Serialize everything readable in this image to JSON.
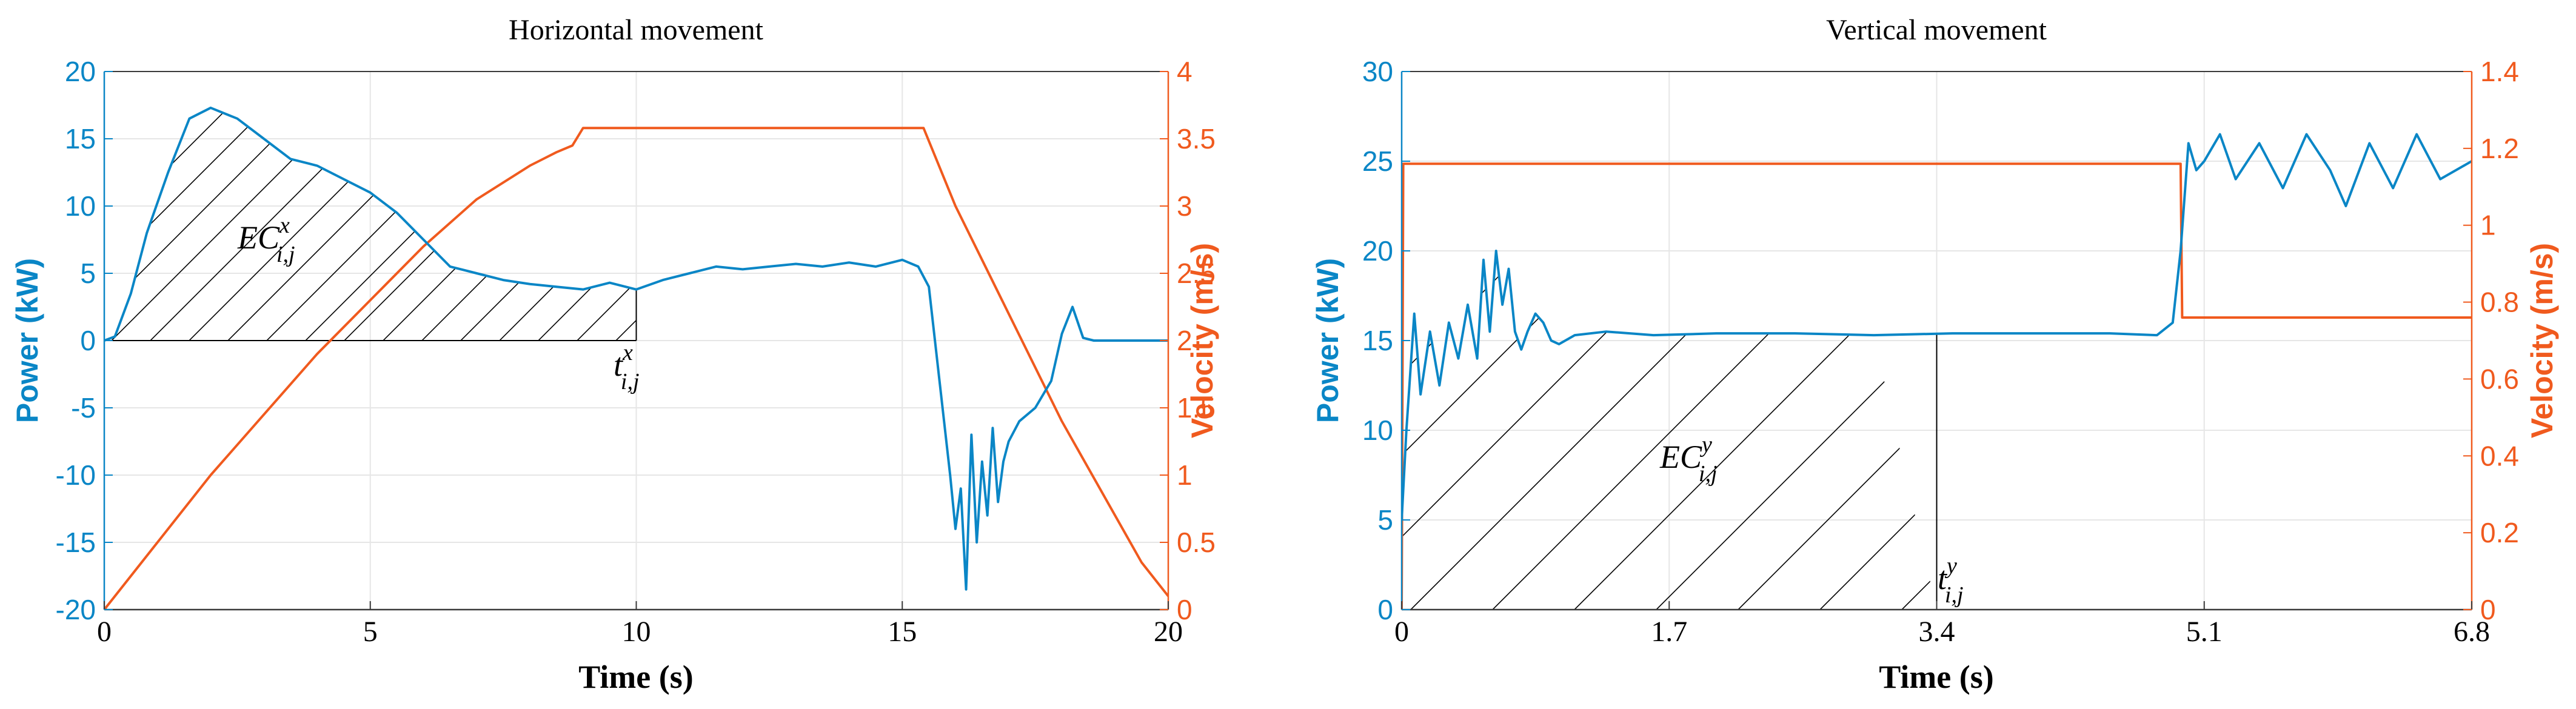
{
  "colors": {
    "power": "#0a86c6",
    "velocity": "#f05a1e",
    "axis": "#3a3a3a",
    "grid": "#e6e6e6",
    "hatch": "#000000"
  },
  "chart_data": [
    {
      "type": "line",
      "title": "Horizontal movement",
      "xlabel": "Time (s)",
      "ylabel_left": "Power (kW)",
      "ylabel_right": "Velocity (m/s)",
      "xlim": [
        0,
        20
      ],
      "ylim_left": [
        -20,
        20
      ],
      "ylim_right": [
        0,
        4
      ],
      "xticks": [
        0,
        5,
        10,
        15,
        20
      ],
      "xtick_labels": [
        "0",
        "5",
        "10",
        "15",
        "20"
      ],
      "yticks_left": [
        -20,
        -15,
        -10,
        -5,
        0,
        5,
        10,
        15,
        20
      ],
      "yticks_left_labels": [
        "-20",
        "-15",
        "-10",
        "-5",
        "0",
        "5",
        "10",
        "15",
        "20"
      ],
      "yticks_right": [
        0,
        0.5,
        1,
        1.5,
        2,
        2.5,
        3,
        3.5,
        4
      ],
      "yticks_right_labels": [
        "0",
        "0.5",
        "1",
        "1.5",
        "2",
        "2.5",
        "3",
        "3.5",
        "4"
      ],
      "grid": true,
      "series": [
        {
          "name": "Power",
          "axis": "left",
          "x": [
            0,
            0.2,
            0.5,
            0.8,
            1.2,
            1.6,
            2.0,
            2.5,
            3.0,
            3.5,
            4.0,
            4.5,
            5.0,
            5.5,
            6.0,
            6.5,
            7.0,
            7.5,
            8.0,
            8.5,
            9.0,
            9.5,
            10.0,
            10.5,
            11.0,
            11.5,
            12.0,
            12.5,
            13.0,
            13.5,
            14.0,
            14.5,
            15.0,
            15.3,
            15.5,
            15.7,
            15.9,
            16.0,
            16.1,
            16.2,
            16.3,
            16.4,
            16.5,
            16.6,
            16.7,
            16.8,
            16.9,
            17.0,
            17.2,
            17.5,
            17.8,
            18.0,
            18.2,
            18.4,
            18.6,
            19.0,
            19.5,
            20.0
          ],
          "y": [
            0,
            0.3,
            3.5,
            8.0,
            12.5,
            16.5,
            17.3,
            16.5,
            15.0,
            13.5,
            13.0,
            12.0,
            11.0,
            9.5,
            7.5,
            5.5,
            5.0,
            4.5,
            4.2,
            4.0,
            3.8,
            4.3,
            3.8,
            4.5,
            5.0,
            5.5,
            5.3,
            5.5,
            5.7,
            5.5,
            5.8,
            5.5,
            6.0,
            5.5,
            4.0,
            -3.0,
            -10.0,
            -14.0,
            -11.0,
            -18.5,
            -7.0,
            -15.0,
            -9.0,
            -13.0,
            -6.5,
            -12.0,
            -9.0,
            -7.5,
            -6.0,
            -5.0,
            -3.0,
            0.5,
            2.5,
            0.2,
            0,
            0,
            0,
            0
          ]
        },
        {
          "name": "Velocity",
          "axis": "right",
          "x": [
            0,
            1,
            2,
            3,
            4,
            5,
            6,
            7,
            8,
            8.5,
            8.8,
            9.0,
            10,
            12,
            14,
            15.4,
            16,
            17,
            18,
            19,
            19.5,
            20
          ],
          "y": [
            0,
            0.5,
            1.0,
            1.45,
            1.9,
            2.3,
            2.7,
            3.05,
            3.3,
            3.4,
            3.45,
            3.58,
            3.58,
            3.58,
            3.58,
            3.58,
            3.0,
            2.2,
            1.4,
            0.7,
            0.35,
            0.1
          ]
        }
      ],
      "annotations": [
        {
          "text": "EC",
          "superscript": "x",
          "subscript": "i,j",
          "x": 3.1,
          "y": 7.8
        },
        {
          "text": "t",
          "superscript": "x",
          "subscript": "i,j",
          "x": 9.6,
          "y": -2.8
        }
      ],
      "shaded_region": {
        "x_start": 0,
        "x_end": 10,
        "pattern": "hatched"
      }
    },
    {
      "type": "line",
      "title": "Vertical movement",
      "xlabel": "Time (s)",
      "ylabel_left": "Power (kW)",
      "ylabel_right": "Velocity (m/s)",
      "xlim": [
        0,
        6.8
      ],
      "ylim_left": [
        0,
        30
      ],
      "ylim_right": [
        0,
        1.4
      ],
      "xticks": [
        0,
        1.7,
        3.4,
        5.1,
        6.8
      ],
      "xtick_labels": [
        "0",
        "1.7",
        "3.4",
        "5.1",
        "6.8"
      ],
      "yticks_left": [
        0,
        5,
        10,
        15,
        20,
        25,
        30
      ],
      "yticks_left_labels": [
        "0",
        "5",
        "10",
        "15",
        "20",
        "25",
        "30"
      ],
      "yticks_right": [
        0,
        0.2,
        0.4,
        0.6,
        0.8,
        1,
        1.2,
        1.4
      ],
      "yticks_right_labels": [
        "0",
        "0.2",
        "0.4",
        "0.6",
        "0.8",
        "1",
        "1.2",
        "1.4"
      ],
      "grid": true,
      "series": [
        {
          "name": "Power",
          "axis": "left",
          "x": [
            0,
            0.03,
            0.08,
            0.12,
            0.18,
            0.24,
            0.3,
            0.36,
            0.42,
            0.48,
            0.52,
            0.56,
            0.6,
            0.64,
            0.68,
            0.72,
            0.76,
            0.8,
            0.85,
            0.9,
            0.95,
            1.0,
            1.1,
            1.3,
            1.6,
            2.0,
            2.5,
            3.0,
            3.5,
            4.0,
            4.5,
            4.8,
            4.9,
            4.95,
            5.0,
            5.05,
            5.1,
            5.2,
            5.3,
            5.45,
            5.6,
            5.75,
            5.9,
            6.0,
            6.15,
            6.3,
            6.45,
            6.6,
            6.8
          ],
          "y": [
            5,
            10,
            16.5,
            12.0,
            15.5,
            12.5,
            16.0,
            14.0,
            17.0,
            14.0,
            19.5,
            15.5,
            20.0,
            17.0,
            19.0,
            15.5,
            14.5,
            15.5,
            16.5,
            16.0,
            15.0,
            14.8,
            15.3,
            15.5,
            15.3,
            15.4,
            15.4,
            15.3,
            15.4,
            15.4,
            15.4,
            15.3,
            16.0,
            20.0,
            26.0,
            24.5,
            25.0,
            26.5,
            24.0,
            26.0,
            23.5,
            26.5,
            24.5,
            22.5,
            26.0,
            23.5,
            26.5,
            24.0,
            25.0
          ]
        },
        {
          "name": "Velocity",
          "axis": "right",
          "x": [
            0,
            0.01,
            4.95,
            4.96,
            6.8
          ],
          "y": [
            0,
            1.16,
            1.16,
            0.76,
            0.76
          ]
        }
      ],
      "annotations": [
        {
          "text": "EC",
          "superscript": "y",
          "subscript": "i,j",
          "x": 1.65,
          "y": 8.3
        },
        {
          "text": "t",
          "superscript": "y",
          "subscript": "i,j",
          "x": 3.4,
          "y": 0.8
        }
      ],
      "shaded_region": {
        "x_start": 0,
        "x_end": 3.4,
        "pattern": "hatched"
      }
    }
  ]
}
